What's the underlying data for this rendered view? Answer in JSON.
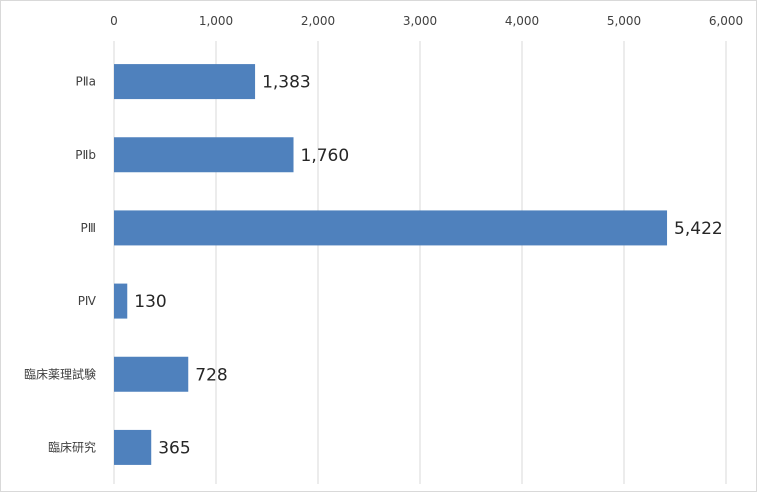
{
  "chart_data": {
    "type": "bar",
    "orientation": "horizontal",
    "categories": [
      "PⅡa",
      "PⅡb",
      "PⅢ",
      "PⅣ",
      "臨床薬理試験",
      "臨床研究"
    ],
    "values": [
      1383,
      1760,
      5422,
      130,
      728,
      365
    ],
    "value_labels": [
      "1,383",
      "1,760",
      "5,422",
      "130",
      "728",
      "365"
    ],
    "x_ticks": [
      "0",
      "1,000",
      "2,000",
      "3,000",
      "4,000",
      "5,000",
      "6,000"
    ],
    "xlim": [
      0,
      6000
    ],
    "x_axis_position": "top",
    "grid": true,
    "legend": "none",
    "bar_color": "#4f81bd",
    "grid_color": "#d9d9d9",
    "title": "",
    "xlabel": "",
    "ylabel": ""
  }
}
